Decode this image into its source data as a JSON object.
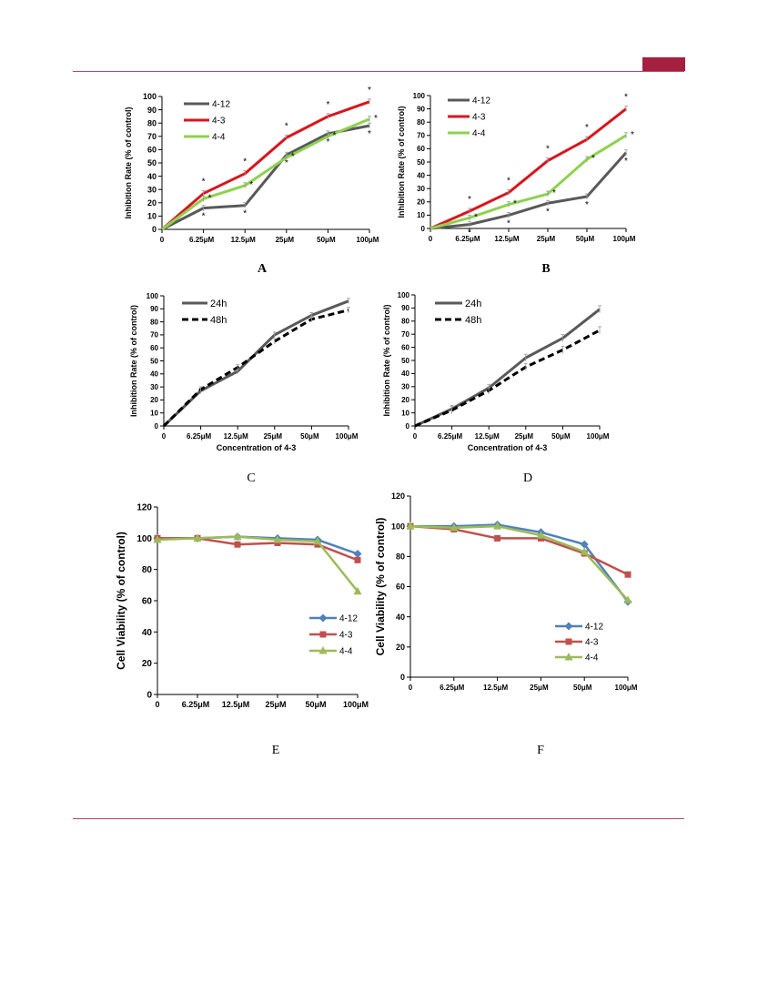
{
  "header": {
    "accent_color": "#a51f3e",
    "rule_color": "#b7476a"
  },
  "captions": {
    "A": "A",
    "B": "B",
    "C": "C",
    "D": "D",
    "E": "E",
    "F": "F"
  },
  "chart_data": [
    {
      "panel": "A",
      "type": "line",
      "categories": [
        "0",
        "6.25μM",
        "12.5μM",
        "25μM",
        "50μM",
        "100μM"
      ],
      "xlabel": "",
      "ylabel": "Inhibition Rate (% of control)",
      "ylim": [
        0,
        100
      ],
      "yticks": [
        0,
        10,
        20,
        30,
        40,
        50,
        60,
        70,
        80,
        90,
        100
      ],
      "legend": "top-left",
      "grid": false,
      "series": [
        {
          "name": "4-12",
          "color": "#595959",
          "dash": false,
          "values": [
            0,
            16,
            18,
            56,
            72,
            78
          ]
        },
        {
          "name": "4-3",
          "color": "#d9151d",
          "dash": false,
          "values": [
            0,
            27,
            42,
            69,
            85,
            96
          ]
        },
        {
          "name": "4-4",
          "color": "#8fd14f",
          "dash": false,
          "values": [
            0,
            23,
            33,
            54,
            70,
            83
          ]
        }
      ],
      "annotations": "*"
    },
    {
      "panel": "B",
      "type": "line",
      "categories": [
        "0",
        "6.25μM",
        "12.5μM",
        "25μM",
        "50μM",
        "100μM"
      ],
      "xlabel": "",
      "ylabel": "Inhibition Rate (% of control)",
      "ylim": [
        0,
        100
      ],
      "yticks": [
        0,
        10,
        20,
        30,
        40,
        50,
        60,
        70,
        80,
        90,
        100
      ],
      "legend": "top-left",
      "grid": false,
      "series": [
        {
          "name": "4-12",
          "color": "#595959",
          "dash": false,
          "values": [
            0,
            3,
            10,
            19,
            24,
            57
          ]
        },
        {
          "name": "4-3",
          "color": "#d9151d",
          "dash": false,
          "values": [
            0,
            13,
            27,
            51,
            67,
            90
          ]
        },
        {
          "name": "4-4",
          "color": "#8fd14f",
          "dash": false,
          "values": [
            0,
            8,
            18,
            26,
            52,
            70
          ]
        }
      ],
      "annotations": "*"
    },
    {
      "panel": "C",
      "type": "line",
      "categories": [
        "0",
        "6.25μM",
        "12.5μM",
        "25μM",
        "50μM",
        "100μM"
      ],
      "xlabel": "Concentration of 4-3",
      "ylabel": "Inhibition Rate (% of control)",
      "ylim": [
        0,
        100
      ],
      "yticks": [
        0,
        10,
        20,
        30,
        40,
        50,
        60,
        70,
        80,
        90,
        100
      ],
      "legend": "top-left",
      "grid": false,
      "series": [
        {
          "name": "24h",
          "color": "#595959",
          "dash": false,
          "values": [
            0,
            27,
            42,
            70,
            85,
            96
          ]
        },
        {
          "name": "48h",
          "color": "#000000",
          "dash": true,
          "values": [
            0,
            28,
            45,
            65,
            82,
            89
          ]
        }
      ]
    },
    {
      "panel": "D",
      "type": "line",
      "categories": [
        "0",
        "6.25μM",
        "12.5μM",
        "25μM",
        "50μM",
        "100μM"
      ],
      "xlabel": "Concentration of 4-3",
      "ylabel": "Inhibition Rate (% of control)",
      "ylim": [
        0,
        100
      ],
      "yticks": [
        0,
        10,
        20,
        30,
        40,
        50,
        60,
        70,
        80,
        90,
        100
      ],
      "legend": "top-left",
      "grid": false,
      "series": [
        {
          "name": "24h",
          "color": "#595959",
          "dash": false,
          "values": [
            0,
            13,
            29,
            52,
            67,
            89
          ]
        },
        {
          "name": "48h",
          "color": "#000000",
          "dash": true,
          "values": [
            0,
            12,
            27,
            45,
            58,
            73
          ]
        }
      ]
    },
    {
      "panel": "E",
      "type": "line",
      "categories": [
        "0",
        "6.25μM",
        "12.5μM",
        "25μM",
        "50μM",
        "100μM"
      ],
      "xlabel": "",
      "ylabel": "Cell Viability (% of control)",
      "ylim": [
        0,
        120
      ],
      "yticks": [
        0,
        20,
        40,
        60,
        80,
        100,
        120
      ],
      "legend": "bottom-right",
      "grid": false,
      "series": [
        {
          "name": "4-12",
          "color": "#4f81bd",
          "marker": "diamond",
          "values": [
            100,
            100,
            101,
            100,
            99,
            90
          ]
        },
        {
          "name": "4-3",
          "color": "#c0504d",
          "marker": "square",
          "values": [
            100,
            100,
            96,
            97,
            96,
            86
          ]
        },
        {
          "name": "4-4",
          "color": "#9bbb59",
          "marker": "triangle",
          "values": [
            99,
            100,
            101,
            99,
            98,
            66
          ]
        }
      ]
    },
    {
      "panel": "F",
      "type": "line",
      "categories": [
        "0",
        "6.25μM",
        "12.5μM",
        "25μM",
        "50μM",
        "100μM"
      ],
      "xlabel": "",
      "ylabel": "Cell Viability (% of control)",
      "ylim": [
        0,
        120
      ],
      "yticks": [
        0,
        20,
        40,
        60,
        80,
        100,
        120
      ],
      "legend": "bottom-right",
      "grid": false,
      "series": [
        {
          "name": "4-12",
          "color": "#4f81bd",
          "marker": "diamond",
          "values": [
            100,
            100,
            101,
            96,
            88,
            50
          ]
        },
        {
          "name": "4-3",
          "color": "#c0504d",
          "marker": "square",
          "values": [
            100,
            98,
            92,
            92,
            82,
            68
          ]
        },
        {
          "name": "4-4",
          "color": "#9bbb59",
          "marker": "triangle",
          "values": [
            100,
            99,
            100,
            94,
            83,
            51
          ]
        }
      ]
    }
  ]
}
